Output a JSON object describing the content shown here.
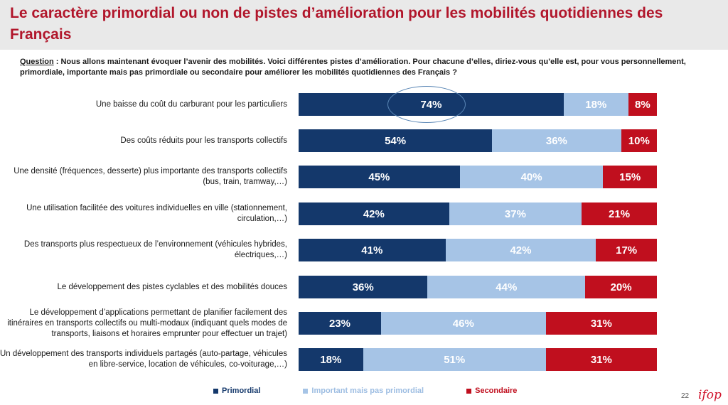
{
  "title": "Le caractère primordial ou non de pistes d’amélioration pour les mobilités quotidiennes des Français",
  "question": {
    "label": "Question",
    "text": " :  Nous allons maintenant évoquer l’avenir des mobilités. Voici différentes pistes d’amélioration. Pour chacune d’elles, diriez-vous qu’elle est, pour vous personnellement, primordiale, importante mais pas primordiale ou secondaire pour améliorer les mobilités quotidiennes des Français ?"
  },
  "chart_data": {
    "type": "bar",
    "stacked": true,
    "orientation": "horizontal",
    "categories": [
      "Une baisse du coût du carburant pour les particuliers",
      "Des coûts réduits pour les transports collectifs",
      "Une densité (fréquences, desserte) plus importante des transports collectifs (bus, train, tramway,…)",
      "Une utilisation facilitée des voitures individuelles en ville (stationnement, circulation,…)",
      "Des transports plus respectueux de l’environnement (véhicules hybrides, électriques,…)",
      "Le développement des pistes cyclables et des mobilités douces",
      "Le développement d’applications permettant de planifier facilement des itinéraires en transports collectifs ou multi-modaux (indiquant quels modes de transports, liaisons et horaires emprunter pour effectuer un trajet)",
      "Un développement des transports individuels partagés (auto-partage, véhicules en libre-service, location de véhicules, co-voiturage,…)"
    ],
    "series": [
      {
        "name": "Primordial",
        "color": "#14386b",
        "values": [
          74,
          54,
          45,
          42,
          41,
          36,
          23,
          18
        ]
      },
      {
        "name": "Important mais pas primordial",
        "color": "#a6c4e6",
        "values": [
          18,
          36,
          40,
          37,
          42,
          44,
          46,
          51
        ]
      },
      {
        "name": "Secondaire",
        "color": "#c00f1e",
        "values": [
          8,
          10,
          15,
          21,
          17,
          20,
          31,
          31
        ]
      }
    ],
    "value_suffix": "%",
    "legend_position": "bottom",
    "highlighted": {
      "category_index": 0,
      "series_index": 0
    }
  },
  "page_number": "22",
  "logo": "ifop"
}
